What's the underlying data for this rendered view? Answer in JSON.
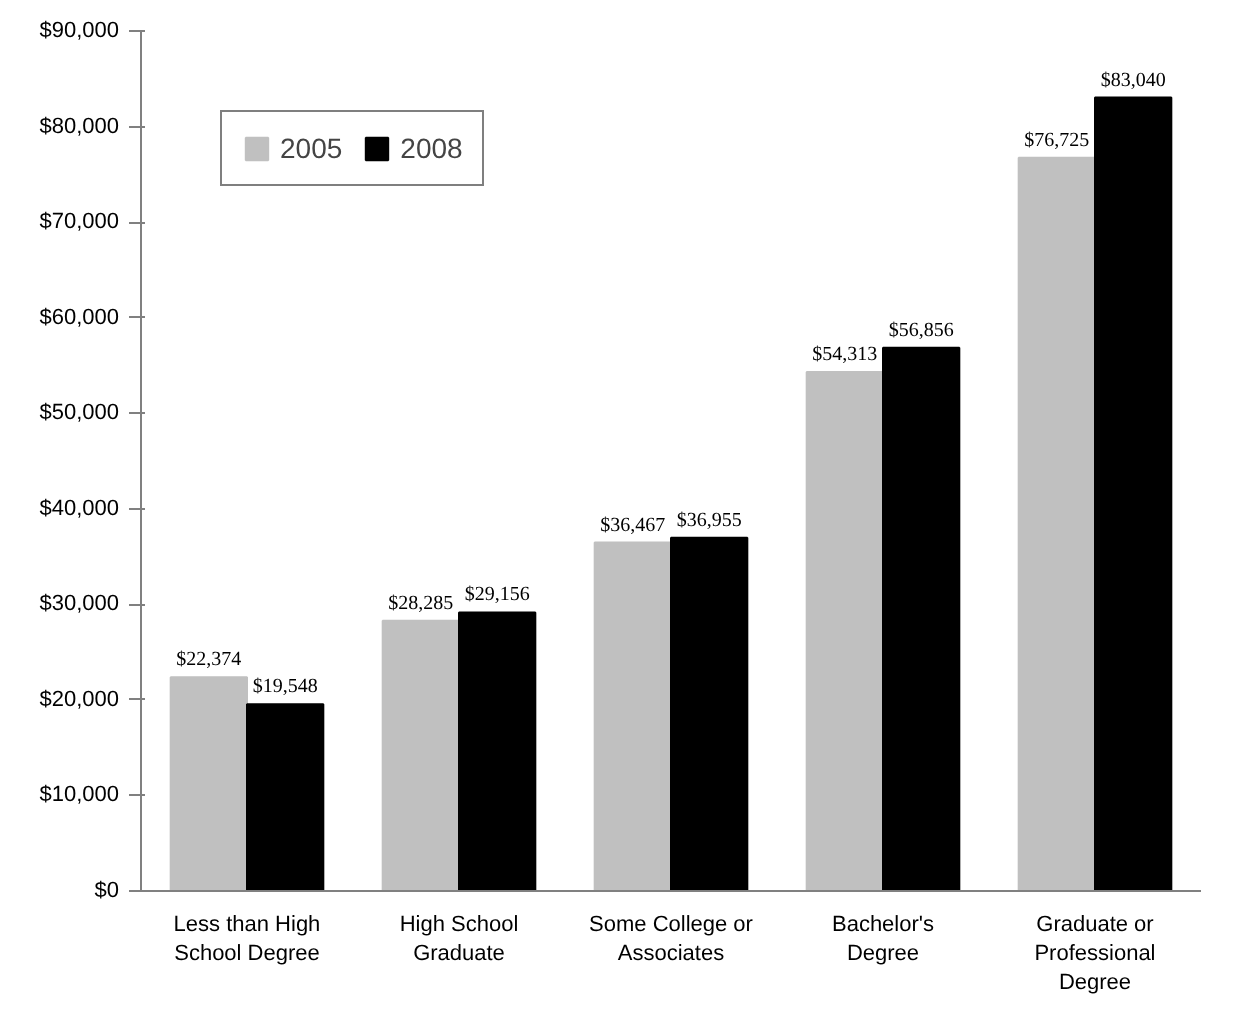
{
  "chart_data": {
    "type": "bar",
    "categories": [
      "Less than High School Degree",
      "High School Graduate",
      "Some College or Associates",
      "Bachelor's Degree",
      "Graduate or Professional Degree"
    ],
    "series": [
      {
        "name": "2005",
        "color": "#c0c0c0",
        "values": [
          22374,
          28285,
          36467,
          54313,
          76725
        ],
        "value_labels": [
          "$22,374",
          "$28,285",
          "$36,467",
          "$54,313",
          "$76,725"
        ]
      },
      {
        "name": "2008",
        "color": "#000000",
        "values": [
          19548,
          29156,
          36955,
          56856,
          83040
        ],
        "value_labels": [
          "$19,548",
          "$29,156",
          "$36,955",
          "$56,856",
          "$83,040"
        ]
      }
    ],
    "ylim": [
      0,
      90000
    ],
    "yticks": [
      {
        "value": 0,
        "label": "$0"
      },
      {
        "value": 10000,
        "label": "$10,000"
      },
      {
        "value": 20000,
        "label": "$20,000"
      },
      {
        "value": 30000,
        "label": "$30,000"
      },
      {
        "value": 40000,
        "label": "$40,000"
      },
      {
        "value": 50000,
        "label": "$50,000"
      },
      {
        "value": 60000,
        "label": "$60,000"
      },
      {
        "value": 70000,
        "label": "$70,000"
      },
      {
        "value": 80000,
        "label": "$80,000"
      },
      {
        "value": 90000,
        "label": "$90,000"
      }
    ],
    "grid": false,
    "legend": "top left"
  }
}
